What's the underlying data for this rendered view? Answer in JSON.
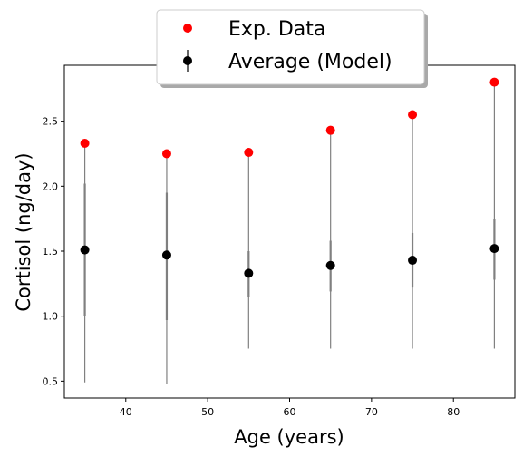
{
  "chart_data": {
    "type": "scatter",
    "xlabel": "Age (years)",
    "ylabel": "Cortisol (ng/day)",
    "xlim": [
      32.5,
      87.5
    ],
    "ylim": [
      0.37,
      2.93
    ],
    "xticks": [
      40,
      50,
      60,
      70,
      80
    ],
    "yticks": [
      0.5,
      1.0,
      1.5,
      2.0,
      2.5
    ],
    "grid": false,
    "legend_position": "top-center",
    "x": [
      35,
      45,
      55,
      65,
      75,
      85
    ],
    "series": [
      {
        "name": "Exp. Data",
        "marker": "circle",
        "color": "#ff0000",
        "values": [
          2.33,
          2.25,
          2.26,
          2.43,
          2.55,
          2.8
        ]
      },
      {
        "name": "Average (Model)",
        "marker": "circle",
        "color": "#000000",
        "values": [
          1.51,
          1.47,
          1.33,
          1.39,
          1.43,
          1.52
        ],
        "error_bar_color": "#808080",
        "error_inner": [
          [
            1.0,
            2.02
          ],
          [
            0.97,
            1.95
          ],
          [
            1.15,
            1.5
          ],
          [
            1.19,
            1.58
          ],
          [
            1.22,
            1.64
          ],
          [
            1.28,
            1.75
          ]
        ],
        "error_outer": [
          [
            0.49,
            2.33
          ],
          [
            0.48,
            2.25
          ],
          [
            0.75,
            2.26
          ],
          [
            0.75,
            2.43
          ],
          [
            0.75,
            2.55
          ],
          [
            0.75,
            2.8
          ]
        ]
      }
    ]
  }
}
